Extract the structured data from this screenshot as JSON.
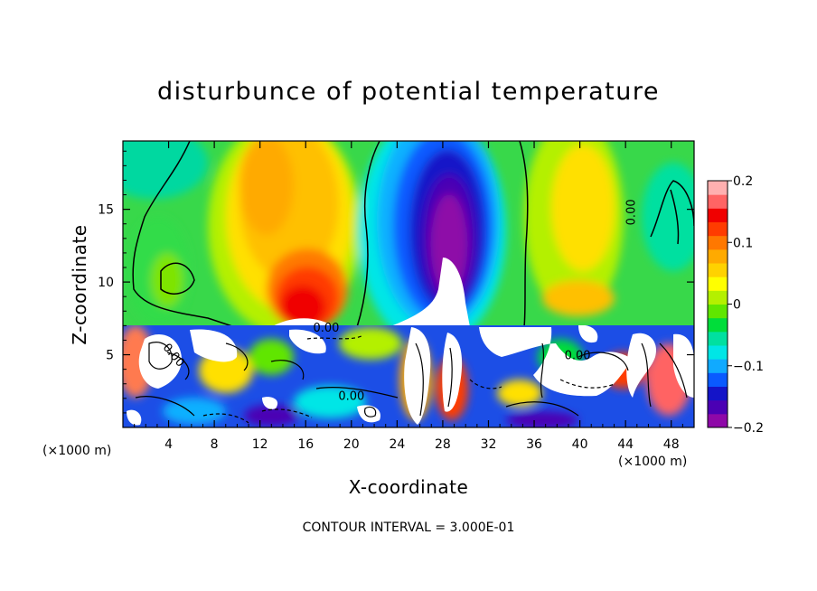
{
  "chart_data": {
    "type": "heatmap",
    "title": "disturbunce of potential temperature",
    "xlabel": "X-coordinate",
    "ylabel": "Z-coordinate",
    "x_unit_left": "(×1000 m)",
    "x_unit_right": "(×1000 m)",
    "x_ticks": [
      4,
      8,
      12,
      16,
      20,
      24,
      28,
      32,
      36,
      40,
      44,
      48
    ],
    "y_ticks": [
      5,
      10,
      15
    ],
    "xlim": [
      0,
      50
    ],
    "ylim": [
      0,
      19.7
    ],
    "colorbar": {
      "ticks": [
        0.2,
        0.1,
        0,
        -0.1,
        -0.2
      ],
      "tick_labels": [
        "0.2",
        "0.1",
        "0",
        "−0.1",
        "−0.2"
      ],
      "range": [
        -0.2,
        0.2
      ],
      "colors": [
        "#8e08a8",
        "#4b00b4",
        "#1414c8",
        "#0a5aff",
        "#10aaff",
        "#00e6e6",
        "#00e0a0",
        "#00dd3a",
        "#60e600",
        "#b4f000",
        "#ffff00",
        "#ffd200",
        "#ffaa00",
        "#ff7800",
        "#ff3c00",
        "#f00000",
        "#ff6464",
        "#ffb0b0"
      ]
    },
    "contour_labels": [
      {
        "text": "0.00",
        "x": 44.8,
        "y": 14.8,
        "rotate": -90
      },
      {
        "text": "0.00",
        "x": 17.8,
        "y": 6.6
      },
      {
        "text": "0.00",
        "x": 4.2,
        "y": 4.8,
        "rotate": 50
      },
      {
        "text": "0.00",
        "x": 39.8,
        "y": 4.7
      },
      {
        "text": "0.00",
        "x": 20.0,
        "y": 1.9
      }
    ],
    "contour_interval": "CONTOUR INTERVAL = 3.000E-01"
  }
}
